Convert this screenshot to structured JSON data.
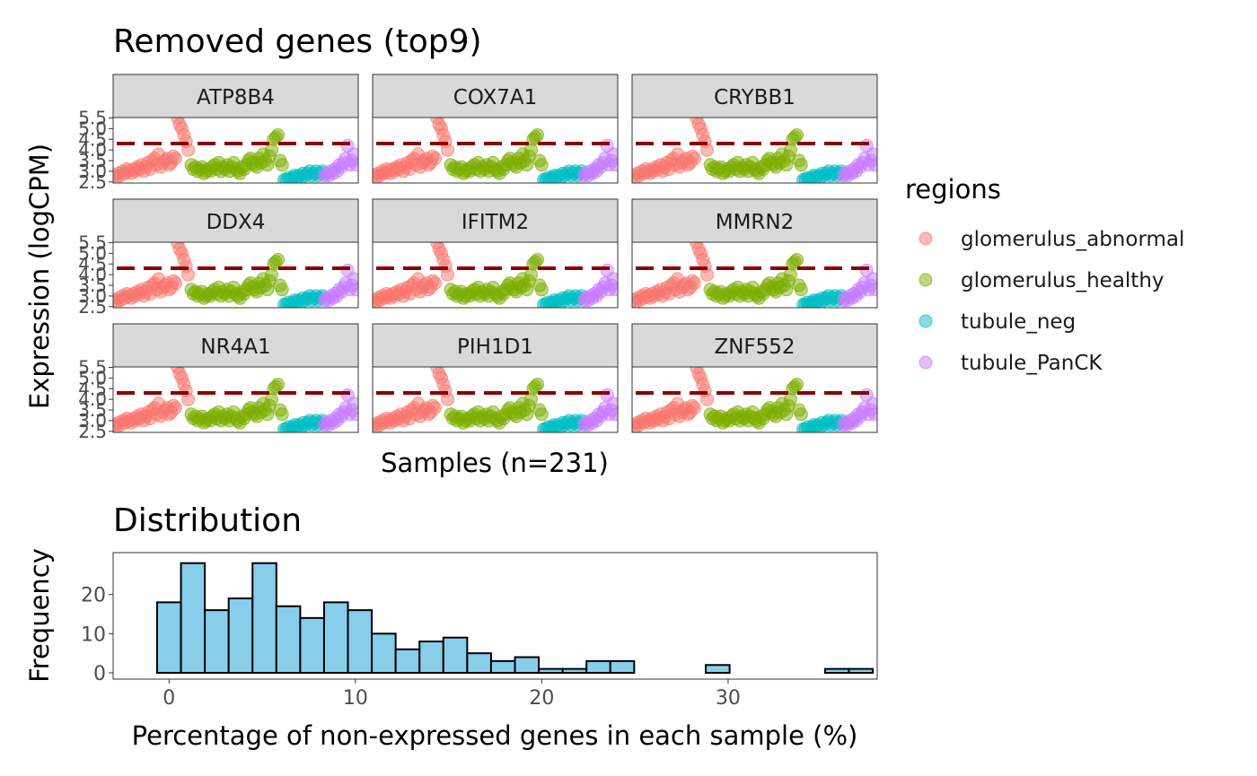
{
  "top_chart": {
    "title": "Removed genes (top9)",
    "xlabel": "Samples (n=231)",
    "ylabel": "Expression (logCPM)",
    "y_ticks": [
      "2.5",
      "3.0",
      "3.5",
      "4.0",
      "4.5",
      "5.0",
      "5.5"
    ],
    "legend_title": "regions"
  },
  "bottom_chart": {
    "title": "Distribution",
    "xlabel": "Percentage of non-expressed genes in each sample (%)",
    "ylabel": "Frequency",
    "x_ticks": [
      "0",
      "10",
      "20",
      "30"
    ],
    "y_ticks": [
      "0",
      "10",
      "20"
    ]
  },
  "colors": {
    "glomerulus_abnormal": "#F8766D",
    "glomerulus_healthy": "#7CAE00",
    "tubule_neg": "#00BFC4",
    "tubule_PanCK": "#C77CFF",
    "threshold_line": "#8B0000",
    "histogram_fill": "#87CEEB",
    "strip_fill": "#D9D9D9"
  },
  "chart_data": [
    {
      "type": "scatter",
      "title": "Removed genes (top9)",
      "xlabel": "Samples (n=231)",
      "ylabel": "Expression (logCPM)",
      "ylim": [
        2.5,
        5.5
      ],
      "threshold": 4.3,
      "facets": [
        "ATP8B4",
        "COX7A1",
        "CRYBB1",
        "DDX4",
        "IFITM2",
        "MMRN2",
        "NR4A1",
        "PIH1D1",
        "ZNF552"
      ],
      "legend": {
        "title": "regions",
        "position": "right",
        "entries": [
          "glomerulus_abnormal",
          "glomerulus_healthy",
          "tubule_neg",
          "tubule_PanCK"
        ]
      },
      "series": [
        {
          "name": "glomerulus_abnormal",
          "color": "#F8766D",
          "x": [
            1,
            3,
            5,
            7,
            9,
            11,
            13,
            15,
            17,
            19,
            21,
            23,
            25,
            27,
            29,
            31,
            33,
            35,
            37,
            39,
            41,
            43,
            45,
            47,
            49,
            51,
            53,
            55,
            57,
            59,
            61,
            63,
            65,
            67,
            69,
            71
          ],
          "y": [
            2.8,
            2.7,
            2.9,
            2.8,
            3.0,
            2.9,
            3.1,
            3.0,
            2.9,
            3.1,
            3.0,
            3.2,
            3.1,
            3.3,
            3.0,
            3.2,
            3.4,
            3.1,
            3.5,
            3.6,
            3.3,
            3.8,
            3.2,
            3.4,
            3.5,
            3.6,
            3.3,
            3.4,
            3.7,
            3.6,
            5.5,
            5.2,
            5.0,
            4.7,
            4.4,
            4.0
          ]
        },
        {
          "name": "glomerulus_healthy",
          "color": "#7CAE00",
          "x": [
            74,
            76,
            78,
            80,
            82,
            84,
            86,
            88,
            90,
            92,
            94,
            96,
            98,
            100,
            102,
            104,
            106,
            108,
            110,
            112,
            114,
            116,
            118,
            120,
            122,
            124,
            126,
            128,
            130,
            132,
            134,
            136,
            138,
            140,
            142,
            144,
            146,
            148,
            150,
            152,
            154,
            156,
            158,
            160
          ],
          "y": [
            3.3,
            3.1,
            3.2,
            3.0,
            3.1,
            3.2,
            2.9,
            3.0,
            3.1,
            3.0,
            3.2,
            3.3,
            3.1,
            3.4,
            3.0,
            3.2,
            3.1,
            3.3,
            3.0,
            3.2,
            3.4,
            3.1,
            3.0,
            2.9,
            3.2,
            3.1,
            3.3,
            3.5,
            3.6,
            3.4,
            3.3,
            3.2,
            3.6,
            3.4,
            3.8,
            3.5,
            3.3,
            3.7,
            4.0,
            4.5,
            4.6,
            4.7,
            3.5,
            3.3
          ]
        },
        {
          "name": "tubule_neg",
          "color": "#00BFC4",
          "x": [
            162,
            164,
            166,
            168,
            170,
            172,
            174,
            176,
            178,
            180,
            182,
            184,
            186,
            188,
            190,
            192,
            194,
            196,
            198
          ],
          "y": [
            2.6,
            2.6,
            2.7,
            2.6,
            2.7,
            2.8,
            2.7,
            2.8,
            2.7,
            2.9,
            2.8,
            2.9,
            3.0,
            2.8,
            2.9,
            3.0,
            2.8,
            2.9,
            3.0
          ]
        },
        {
          "name": "tubule_PanCK",
          "color": "#C77CFF",
          "x": [
            200,
            202,
            204,
            206,
            208,
            210,
            212,
            214,
            216,
            218,
            220,
            222,
            224,
            226,
            228,
            230
          ],
          "y": [
            2.8,
            2.9,
            2.8,
            3.0,
            2.9,
            3.1,
            3.0,
            3.3,
            3.2,
            3.4,
            3.6,
            4.2,
            3.3,
            3.5,
            3.8,
            3.3
          ]
        }
      ]
    },
    {
      "type": "bar",
      "title": "Distribution",
      "xlabel": "Percentage of non-expressed genes in each sample (%)",
      "ylabel": "Frequency",
      "xlim": [
        -3,
        38
      ],
      "ylim": [
        0,
        30
      ],
      "bin_width": 1.28,
      "bin_start": -0.64,
      "x_ticks": [
        0,
        10,
        20,
        30
      ],
      "y_ticks": [
        0,
        10,
        20
      ],
      "values": [
        18,
        28,
        16,
        19,
        28,
        17,
        14,
        18,
        16,
        10,
        6,
        8,
        9,
        5,
        3,
        4,
        1,
        1,
        3,
        3,
        0,
        0,
        0,
        2,
        0,
        0,
        0,
        0,
        1,
        1
      ]
    }
  ]
}
